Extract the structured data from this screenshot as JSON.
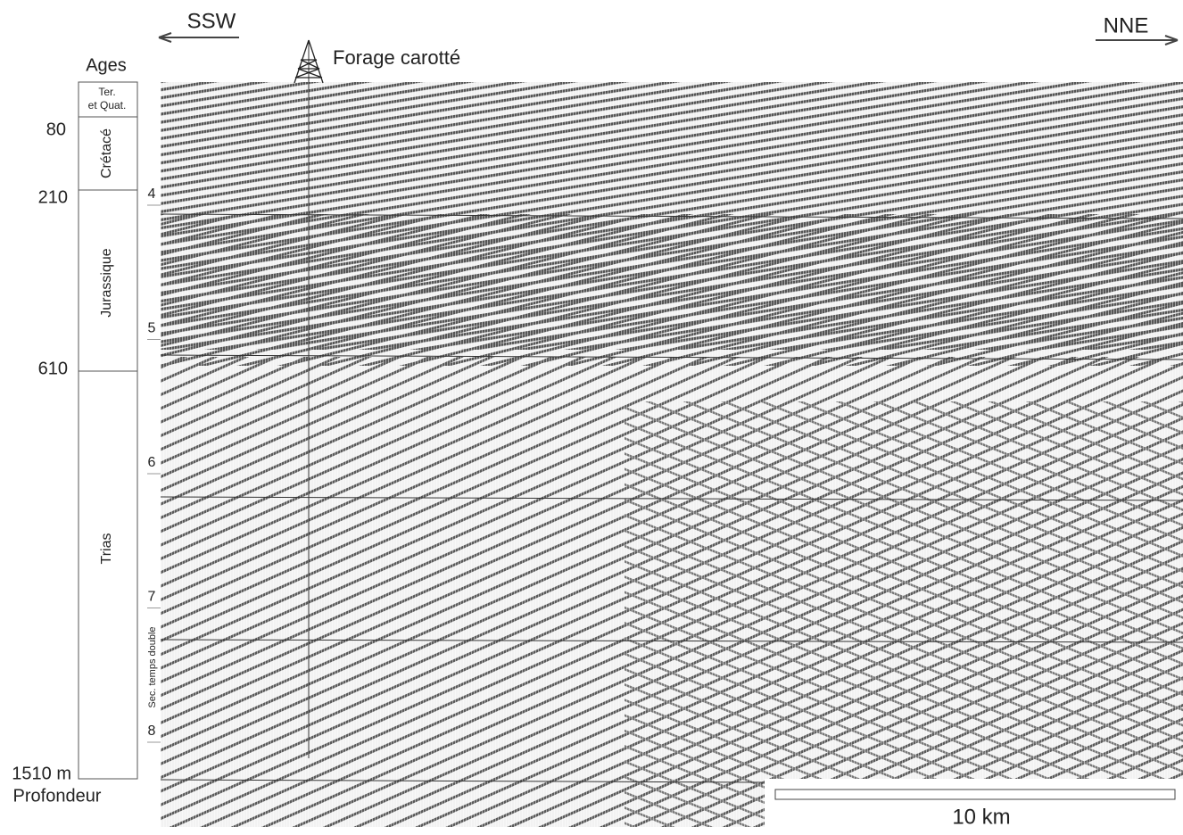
{
  "directions": {
    "left": "SSW",
    "right": "NNE"
  },
  "well": "Forage carotté",
  "age_column": {
    "title": "Ages",
    "units": [
      "Ter.",
      "et Quat.",
      "Crétacé",
      "Jurassique",
      "Trias"
    ],
    "depths": [
      "80",
      "210",
      "610",
      "1510 m"
    ],
    "depth_label": "Profondeur"
  },
  "time_axis": {
    "ticks": [
      4,
      5,
      6,
      7,
      8
    ],
    "label": "Sec. temps double"
  },
  "scale_bar": "10 km"
}
